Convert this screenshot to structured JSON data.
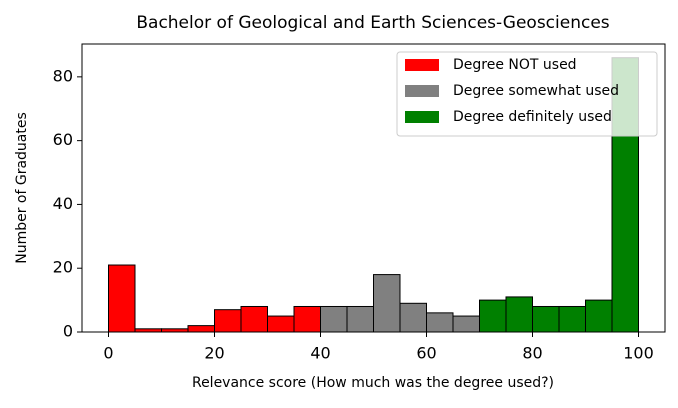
{
  "chart_data": {
    "type": "histogram",
    "title": "Bachelor of Geological and Earth Sciences-Geosciences",
    "xlabel": "Relevance score (How much was the degree used?)",
    "ylabel": "Number of Graduates",
    "xlim": [
      -5,
      105
    ],
    "ylim": [
      0,
      90.3
    ],
    "xticks": [
      0,
      20,
      40,
      60,
      80,
      100
    ],
    "yticks": [
      0,
      20,
      40,
      60,
      80
    ],
    "legend": "upper right",
    "series": [
      {
        "name": "Degree NOT used",
        "color": "#ff0000",
        "bins": [
          0,
          5,
          10,
          15,
          20,
          25,
          30,
          35,
          40
        ],
        "values": [
          21,
          1,
          1,
          2,
          7,
          8,
          5,
          8
        ]
      },
      {
        "name": "Degree somewhat used",
        "color": "#808080",
        "bins": [
          40,
          45,
          50,
          55,
          60,
          65,
          70
        ],
        "values": [
          8,
          8,
          18,
          9,
          6,
          5
        ]
      },
      {
        "name": "Degree definitely used",
        "color": "#008000",
        "bins": [
          70,
          75,
          80,
          85,
          90,
          95,
          100
        ],
        "values": [
          10,
          11,
          8,
          8,
          10,
          86
        ]
      }
    ]
  }
}
